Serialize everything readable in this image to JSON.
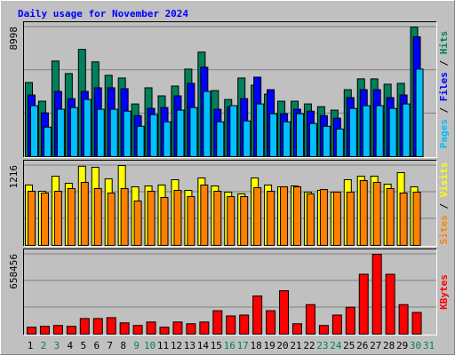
{
  "chart_data": [
    {
      "type": "bar",
      "title": "Daily usage for November 2024",
      "series": [
        {
          "name": "Hits",
          "color": "#00805c",
          "values": [
            5150,
            3850,
            6640,
            5770,
            7450,
            6580,
            5650,
            5460,
            3660,
            4780,
            4220,
            4900,
            6080,
            7260,
            4590,
            3970,
            5460,
            4960,
            4340,
            3850,
            3850,
            3660,
            3470,
            3230,
            4650,
            5400,
            5400,
            5030,
            5090,
            8998,
            null
          ]
        },
        {
          "name": "Files",
          "color": "#0000ff",
          "values": [
            4280,
            3040,
            4530,
            4030,
            4530,
            4780,
            4780,
            4720,
            2850,
            3350,
            3410,
            4220,
            5090,
            6210,
            3290,
            3470,
            4030,
            5520,
            4650,
            2980,
            3290,
            3160,
            2850,
            2670,
            4100,
            4650,
            4650,
            4100,
            4280,
            8320,
            null
          ]
        },
        {
          "name": "Pages",
          "color": "#00c0ff",
          "values": [
            3540,
            2050,
            3290,
            3410,
            3970,
            3290,
            3290,
            3160,
            2110,
            2920,
            2420,
            3230,
            3410,
            4530,
            2420,
            3540,
            2480,
            3660,
            2980,
            2420,
            2980,
            2300,
            2110,
            1920,
            3350,
            3540,
            3540,
            3350,
            3660,
            6080,
            null
          ]
        }
      ],
      "legend_separator": "/",
      "ylim": [
        0,
        8998
      ],
      "yticks": [
        8998
      ]
    },
    {
      "type": "bar",
      "series": [
        {
          "name": "Visits",
          "color": "#ffff00",
          "values": [
            919,
            824,
            1054,
            946,
            1205,
            1189,
            1013,
            1216,
            892,
            905,
            919,
            1000,
            838,
            1027,
            905,
            811,
            784,
            1027,
            919,
            892,
            905,
            811,
            838,
            811,
            1000,
            1054,
            1054,
            932,
            1108,
            892,
            null
          ]
        },
        {
          "name": "Sites",
          "color": "#ff8000",
          "values": [
            824,
            797,
            824,
            865,
            959,
            865,
            797,
            865,
            676,
            824,
            730,
            838,
            743,
            919,
            824,
            743,
            743,
            878,
            824,
            892,
            892,
            784,
            851,
            811,
            811,
            986,
            959,
            865,
            797,
            811,
            null
          ]
        }
      ],
      "legend_separator": "/",
      "ylim": [
        0,
        1216
      ],
      "yticks": [
        1216
      ]
    },
    {
      "type": "bar",
      "series": [
        {
          "name": "KBytes",
          "color": "#ff0000",
          "values": [
            57250,
            64400,
            71570,
            64400,
            128830,
            128830,
            136000,
            93040,
            71570,
            100200,
            57250,
            100200,
            85890,
            100200,
            193240,
            150300,
            157450,
            314910,
            193240,
            357860,
            85890,
            243340,
            71570,
            157450,
            221870,
            493840,
            658456,
            493840,
            243340,
            178930,
            null
          ]
        }
      ],
      "ylim": [
        0,
        658456
      ],
      "yticks": [
        658456
      ],
      "categories": [
        "1",
        "2",
        "3",
        "4",
        "5",
        "6",
        "7",
        "8",
        "9",
        "10",
        "11",
        "12",
        "13",
        "14",
        "15",
        "16",
        "17",
        "18",
        "19",
        "20",
        "21",
        "22",
        "23",
        "24",
        "25",
        "26",
        "27",
        "28",
        "29",
        "30",
        "31"
      ],
      "category_colors": [
        "#000000",
        "#00805c",
        "#00805c",
        "#000000",
        "#000000",
        "#000000",
        "#000000",
        "#000000",
        "#00805c",
        "#00805c",
        "#000000",
        "#000000",
        "#000000",
        "#000000",
        "#000000",
        "#00805c",
        "#00805c",
        "#000000",
        "#000000",
        "#000000",
        "#000000",
        "#000000",
        "#00805c",
        "#00805c",
        "#000000",
        "#000000",
        "#000000",
        "#000000",
        "#000000",
        "#00805c",
        "#00805c"
      ]
    }
  ]
}
